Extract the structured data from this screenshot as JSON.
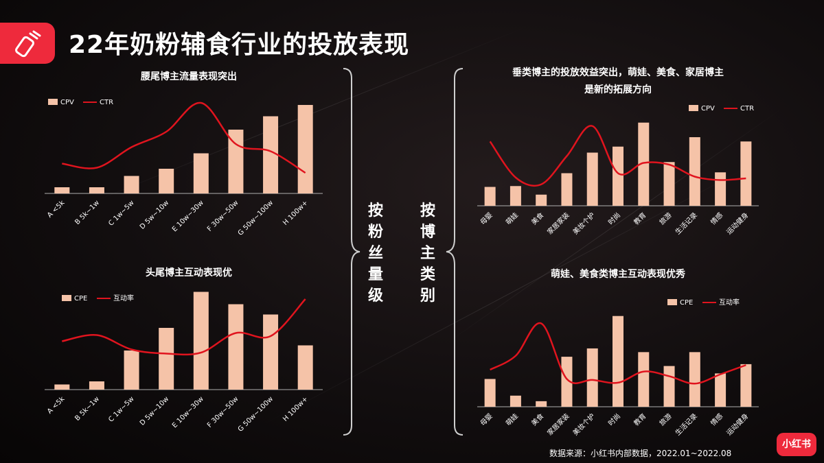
{
  "page": {
    "title": "22年奶粉辅食行业的投放表现",
    "source": "数据来源：小红书内部数据，2022.01~2022.08",
    "brand": "小红书",
    "group_labels": {
      "left": "按粉丝量级",
      "right": "按博主类别"
    },
    "colors": {
      "bar": "#f5c3a8",
      "line": "#e0141e",
      "accent": "#ee2a3c",
      "axis": "#b0b0b0"
    },
    "icon": "bottle-icon"
  },
  "chart_data": [
    {
      "type": "bar",
      "title": "腰尾博主流量表现突出",
      "categories": [
        "A <5k",
        "B 5k~1w",
        "C 1w~5w",
        "D 5w~10w",
        "E 10w~30w",
        "F 30w~50w",
        "G 50w~100w",
        "H 100w+"
      ],
      "series": [
        {
          "name": "CPV",
          "type": "bar",
          "values": [
            6,
            6,
            17,
            24,
            39,
            62,
            75,
            86
          ]
        },
        {
          "name": "CTR",
          "type": "line",
          "values": [
            29,
            25,
            45,
            60,
            88,
            48,
            41,
            20
          ]
        }
      ],
      "legend": "top-left",
      "grid": false
    },
    {
      "type": "bar",
      "title": "头尾博主互动表现优",
      "categories": [
        "A <5k",
        "B 5k~1w",
        "C 1w~5w",
        "D 5w~10w",
        "E 10w~30w",
        "F 30w~50w",
        "G 50w~100w",
        "H 100w+"
      ],
      "series": [
        {
          "name": "CPE",
          "type": "bar",
          "values": [
            5,
            8,
            38,
            60,
            95,
            83,
            73,
            43
          ]
        },
        {
          "name": "互动率",
          "type": "line",
          "values": [
            47,
            53,
            39,
            35,
            36,
            55,
            52,
            88
          ]
        }
      ],
      "legend": "top-left",
      "grid": false
    },
    {
      "type": "bar",
      "title": "垂类博主的投放效益突出，萌娃、美食、家居博主\n是新的拓展方向",
      "categories": [
        "母婴",
        "萌娃",
        "美食",
        "家居家装",
        "美妆个护",
        "时尚",
        "教育",
        "旅游",
        "生活记录",
        "情感",
        "运动健身"
      ],
      "series": [
        {
          "name": "CPV",
          "type": "bar",
          "values": [
            22,
            23,
            13,
            38,
            62,
            69,
            97,
            51,
            80,
            39,
            75
          ]
        },
        {
          "name": "CTR",
          "type": "line",
          "values": [
            75,
            33,
            25,
            58,
            93,
            38,
            50,
            48,
            34,
            30,
            32
          ]
        }
      ],
      "legend": "top-right",
      "grid": false
    },
    {
      "type": "bar",
      "title": "萌娃、美食类博主互动表现优秀",
      "categories": [
        "母婴",
        "萌娃",
        "美食",
        "家居家装",
        "美妆个护",
        "时尚",
        "教育",
        "旅游",
        "生活记录",
        "情感",
        "运动健身"
      ],
      "series": [
        {
          "name": "CPE",
          "type": "bar",
          "values": [
            30,
            12,
            6,
            54,
            63,
            98,
            59,
            44,
            59,
            36,
            46
          ]
        },
        {
          "name": "互动率",
          "type": "line",
          "values": [
            40,
            55,
            90,
            30,
            29,
            26,
            38,
            33,
            25,
            35,
            45
          ]
        }
      ],
      "legend": "top-right",
      "grid": false
    }
  ]
}
